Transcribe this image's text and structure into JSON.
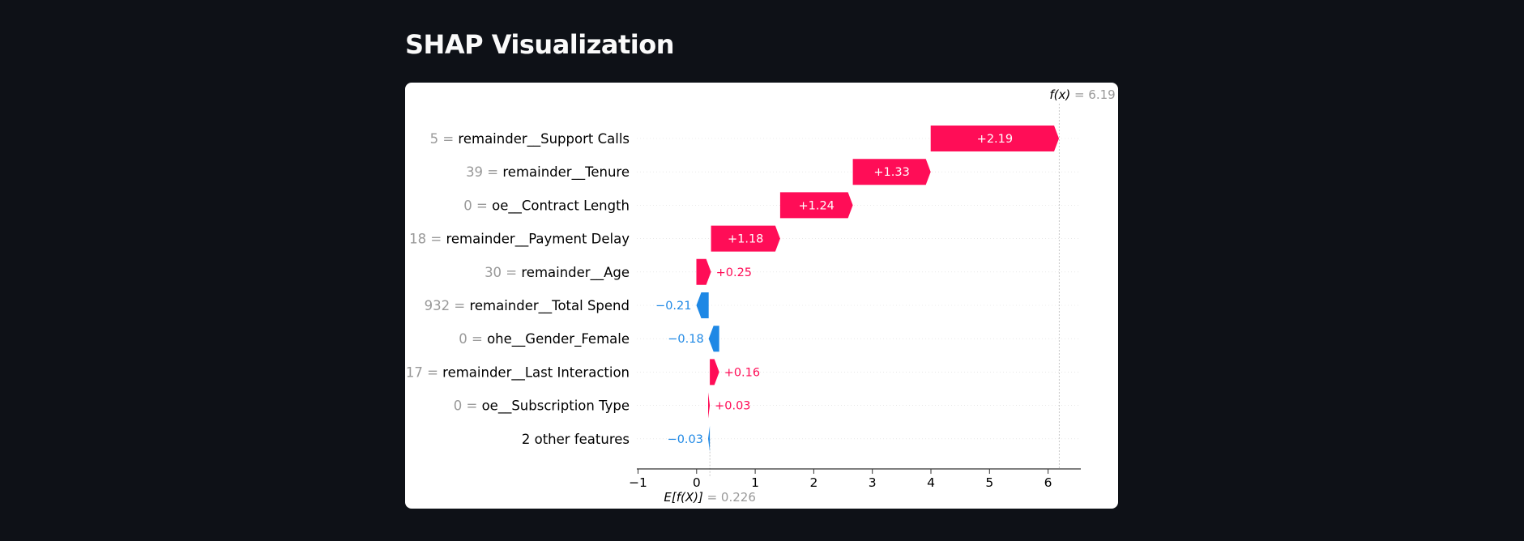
{
  "page": {
    "title": "SHAP Visualization"
  },
  "colors": {
    "positive": "#ff0d57",
    "negative": "#1e88e5",
    "feature_value": "#999999",
    "label": "#000000",
    "guide": "#bbbbbb"
  },
  "chart_data": {
    "type": "waterfall",
    "base_value": 0.226,
    "final_value": 6.19,
    "base_label": {
      "expr": "E[f(X)]",
      "value_text": "= 0.226"
    },
    "final_label": {
      "expr": "f(x)",
      "value_text": "= 6.19"
    },
    "xlim": [
      -1,
      6.6
    ],
    "xticks": [
      -1,
      0,
      1,
      2,
      3,
      4,
      5,
      6
    ],
    "xtick_labels": [
      "−1",
      "0",
      "1",
      "2",
      "3",
      "4",
      "5",
      "6"
    ],
    "features": [
      {
        "value": "5",
        "name": "remainder__Support Calls",
        "shap": 2.19,
        "label": "+2.19"
      },
      {
        "value": "39",
        "name": "remainder__Tenure",
        "shap": 1.33,
        "label": "+1.33"
      },
      {
        "value": "0",
        "name": "oe__Contract Length",
        "shap": 1.24,
        "label": "+1.24"
      },
      {
        "value": "18",
        "name": "remainder__Payment Delay",
        "shap": 1.18,
        "label": "+1.18"
      },
      {
        "value": "30",
        "name": "remainder__Age",
        "shap": 0.25,
        "label": "+0.25"
      },
      {
        "value": "932",
        "name": "remainder__Total Spend",
        "shap": -0.21,
        "label": "−0.21"
      },
      {
        "value": "0",
        "name": "ohe__Gender_Female",
        "shap": -0.18,
        "label": "−0.18"
      },
      {
        "value": "17",
        "name": "remainder__Last Interaction",
        "shap": 0.16,
        "label": "+0.16"
      },
      {
        "value": "0",
        "name": "oe__Subscription Type",
        "shap": 0.03,
        "label": "+0.03"
      },
      {
        "value": "",
        "name": "2 other features",
        "shap": -0.03,
        "label": "−0.03"
      }
    ]
  }
}
